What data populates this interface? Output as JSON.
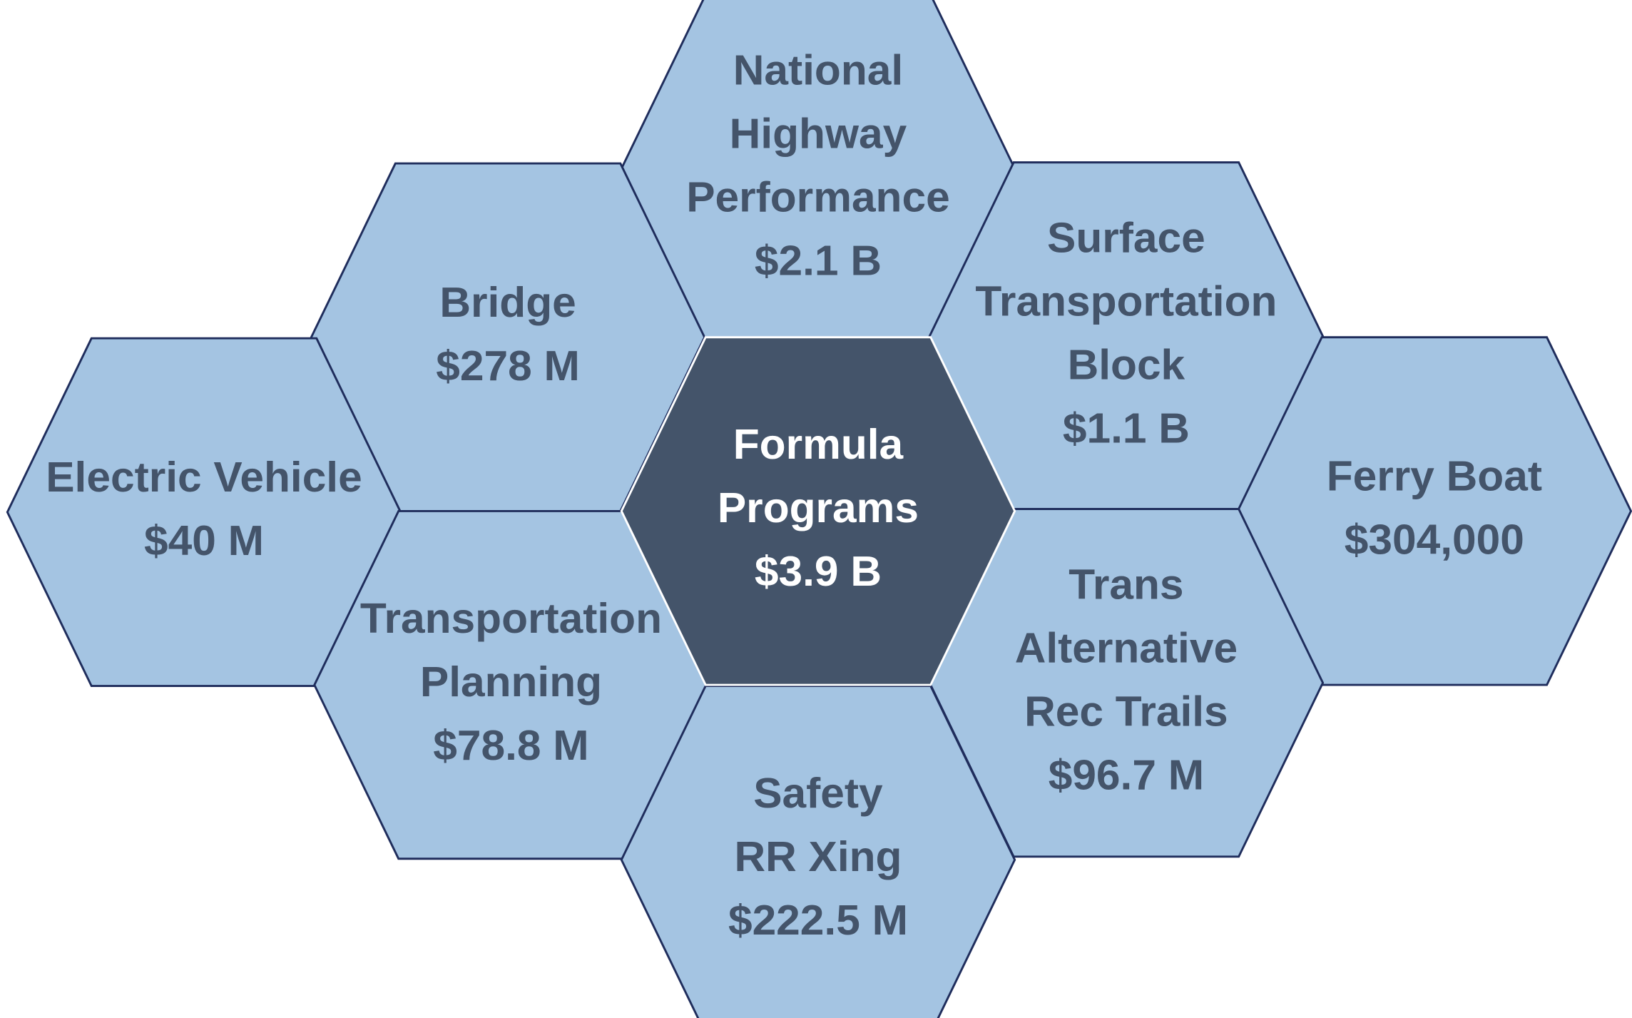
{
  "center": {
    "lines": [
      "Formula",
      "Programs"
    ],
    "amount": "$3.9 B"
  },
  "nodes": [
    {
      "lines": [
        "National",
        "Highway",
        "Performance"
      ],
      "amount": "$2.1 B"
    },
    {
      "lines": [
        "Bridge"
      ],
      "amount": "$278 M"
    },
    {
      "lines": [
        "Surface",
        "Transportation",
        "Block"
      ],
      "amount": "$1.1 B"
    },
    {
      "lines": [
        "Electric Vehicle"
      ],
      "amount": "$40 M"
    },
    {
      "lines": [
        "Ferry Boat"
      ],
      "amount": "$304,000"
    },
    {
      "lines": [
        "Transportation",
        "Planning"
      ],
      "amount": "$78.8 M"
    },
    {
      "lines": [
        "Trans",
        "Alternative",
        "Rec Trails"
      ],
      "amount": "$96.7 M"
    },
    {
      "lines": [
        "Safety",
        "RR Xing"
      ],
      "amount": "$222.5 M"
    }
  ]
}
